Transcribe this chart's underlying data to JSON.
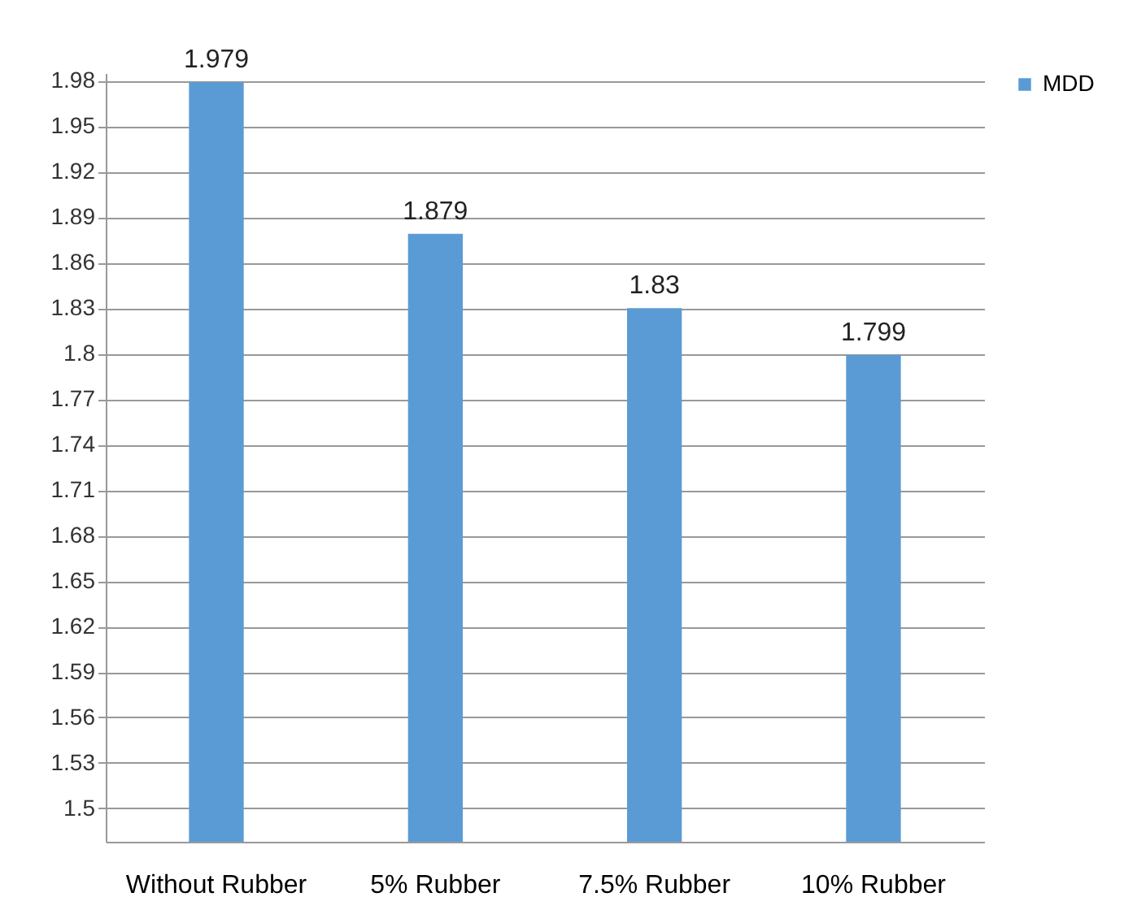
{
  "chart_data": {
    "type": "bar",
    "categories": [
      "Without Rubber",
      "5% Rubber",
      "7.5% Rubber",
      "10% Rubber"
    ],
    "series": [
      {
        "name": "MDD",
        "color": "#5b9bd5",
        "values": [
          1.979,
          1.879,
          1.83,
          1.799
        ]
      }
    ],
    "ylim": [
      1.478,
      1.985
    ],
    "yticks": [
      1.5,
      1.53,
      1.56,
      1.59,
      1.62,
      1.65,
      1.68,
      1.71,
      1.74,
      1.77,
      1.8,
      1.83,
      1.86,
      1.89,
      1.92,
      1.95,
      1.98
    ],
    "grid": "y",
    "legend": "right",
    "data_labels": true
  }
}
